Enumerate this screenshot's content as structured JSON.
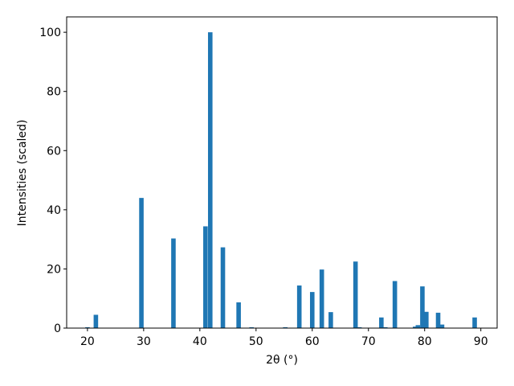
{
  "chart_data": {
    "type": "bar",
    "x_label": "2θ (°)",
    "y_label": "Intensities (scaled)",
    "x": [
      20.0,
      21.5,
      29.6,
      35.3,
      41.0,
      41.85,
      44.1,
      46.9,
      49.2,
      55.2,
      57.7,
      60.0,
      61.7,
      63.3,
      67.7,
      68.4,
      72.3,
      73.0,
      74.7,
      78.3,
      78.8,
      79.6,
      80.3,
      82.4,
      83.1,
      88.9
    ],
    "values": [
      0.3,
      4.5,
      44,
      30.3,
      34.4,
      100,
      27.3,
      8.7,
      0.3,
      0.3,
      14.4,
      12.2,
      19.8,
      5.4,
      22.5,
      0.3,
      3.6,
      0.3,
      15.9,
      0.5,
      1.0,
      14.1,
      5.5,
      5.2,
      1.2,
      3.6
    ],
    "color": "#1f77b4",
    "xlim": [
      16.3,
      92.9
    ],
    "xticks": [
      20,
      30,
      40,
      50,
      60,
      70,
      80,
      90
    ],
    "ylim": [
      0,
      105.2
    ],
    "yticks": [
      0,
      20,
      40,
      60,
      80,
      100
    ],
    "grid": false
  }
}
